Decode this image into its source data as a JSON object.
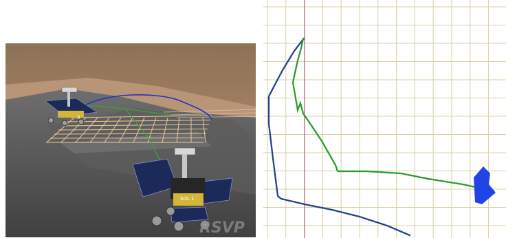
{
  "scene_view": {
    "watermark": "RSVP",
    "rover_labels": [
      "0",
      "SOL 1"
    ]
  },
  "map_view": {
    "colors": {
      "grid_line": "#d9d0a3",
      "origin_line": "#b36a8a",
      "planned_path": "#2a9a2a",
      "actual_path": "#1f3f8f",
      "rover_marker": "#1f45e6"
    }
  }
}
